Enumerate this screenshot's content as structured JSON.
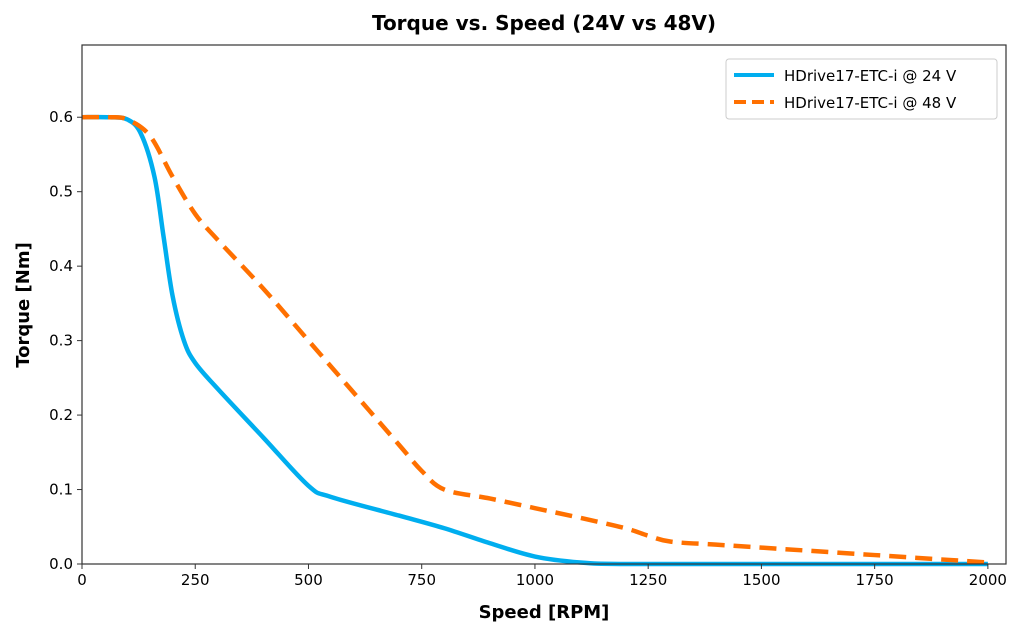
{
  "chart_data": {
    "type": "line",
    "title": "Torque vs. Speed (24V vs 48V)",
    "xlabel": "Speed [RPM]",
    "ylabel": "Torque [Nm]",
    "xlim": [
      0,
      2040
    ],
    "ylim": [
      0,
      0.697
    ],
    "xticks": [
      0,
      250,
      500,
      750,
      1000,
      1250,
      1500,
      1750,
      2000
    ],
    "xtick_labels": [
      "0",
      "250",
      "500",
      "750",
      "1000",
      "1250",
      "1500",
      "1750",
      "2000"
    ],
    "yticks": [
      0,
      0.1,
      0.2,
      0.3,
      0.4,
      0.5,
      0.6
    ],
    "ytick_labels": [
      "0.0",
      "0.1",
      "0.2",
      "0.3",
      "0.4",
      "0.5",
      "0.6"
    ],
    "grid": false,
    "legend_position": "top-right",
    "series": [
      {
        "name": "HDrive17-ETC-i @ 24 V",
        "color": "#00AEEF",
        "style": "solid",
        "x": [
          0,
          60,
          100,
          130,
          160,
          180,
          200,
          225,
          250,
          300,
          400,
          500,
          550,
          700,
          800,
          900,
          1000,
          1100,
          1200,
          1500,
          2000
        ],
        "y": [
          0.6,
          0.6,
          0.597,
          0.578,
          0.52,
          0.44,
          0.36,
          0.3,
          0.27,
          0.235,
          0.17,
          0.105,
          0.09,
          0.065,
          0.048,
          0.028,
          0.01,
          0.002,
          0.0,
          0.0,
          0.0
        ]
      },
      {
        "name": "HDrive17-ETC-i @ 48 V",
        "color": "#FF7000",
        "style": "dashed",
        "x": [
          0,
          60,
          100,
          150,
          200,
          250,
          300,
          400,
          500,
          600,
          700,
          750,
          800,
          900,
          1000,
          1100,
          1200,
          1250,
          1300,
          1400,
          1500,
          1750,
          2000
        ],
        "y": [
          0.6,
          0.6,
          0.597,
          0.575,
          0.52,
          0.47,
          0.435,
          0.37,
          0.3,
          0.23,
          0.16,
          0.125,
          0.1,
          0.088,
          0.075,
          0.062,
          0.048,
          0.038,
          0.03,
          0.026,
          0.022,
          0.012,
          0.002
        ]
      }
    ]
  }
}
